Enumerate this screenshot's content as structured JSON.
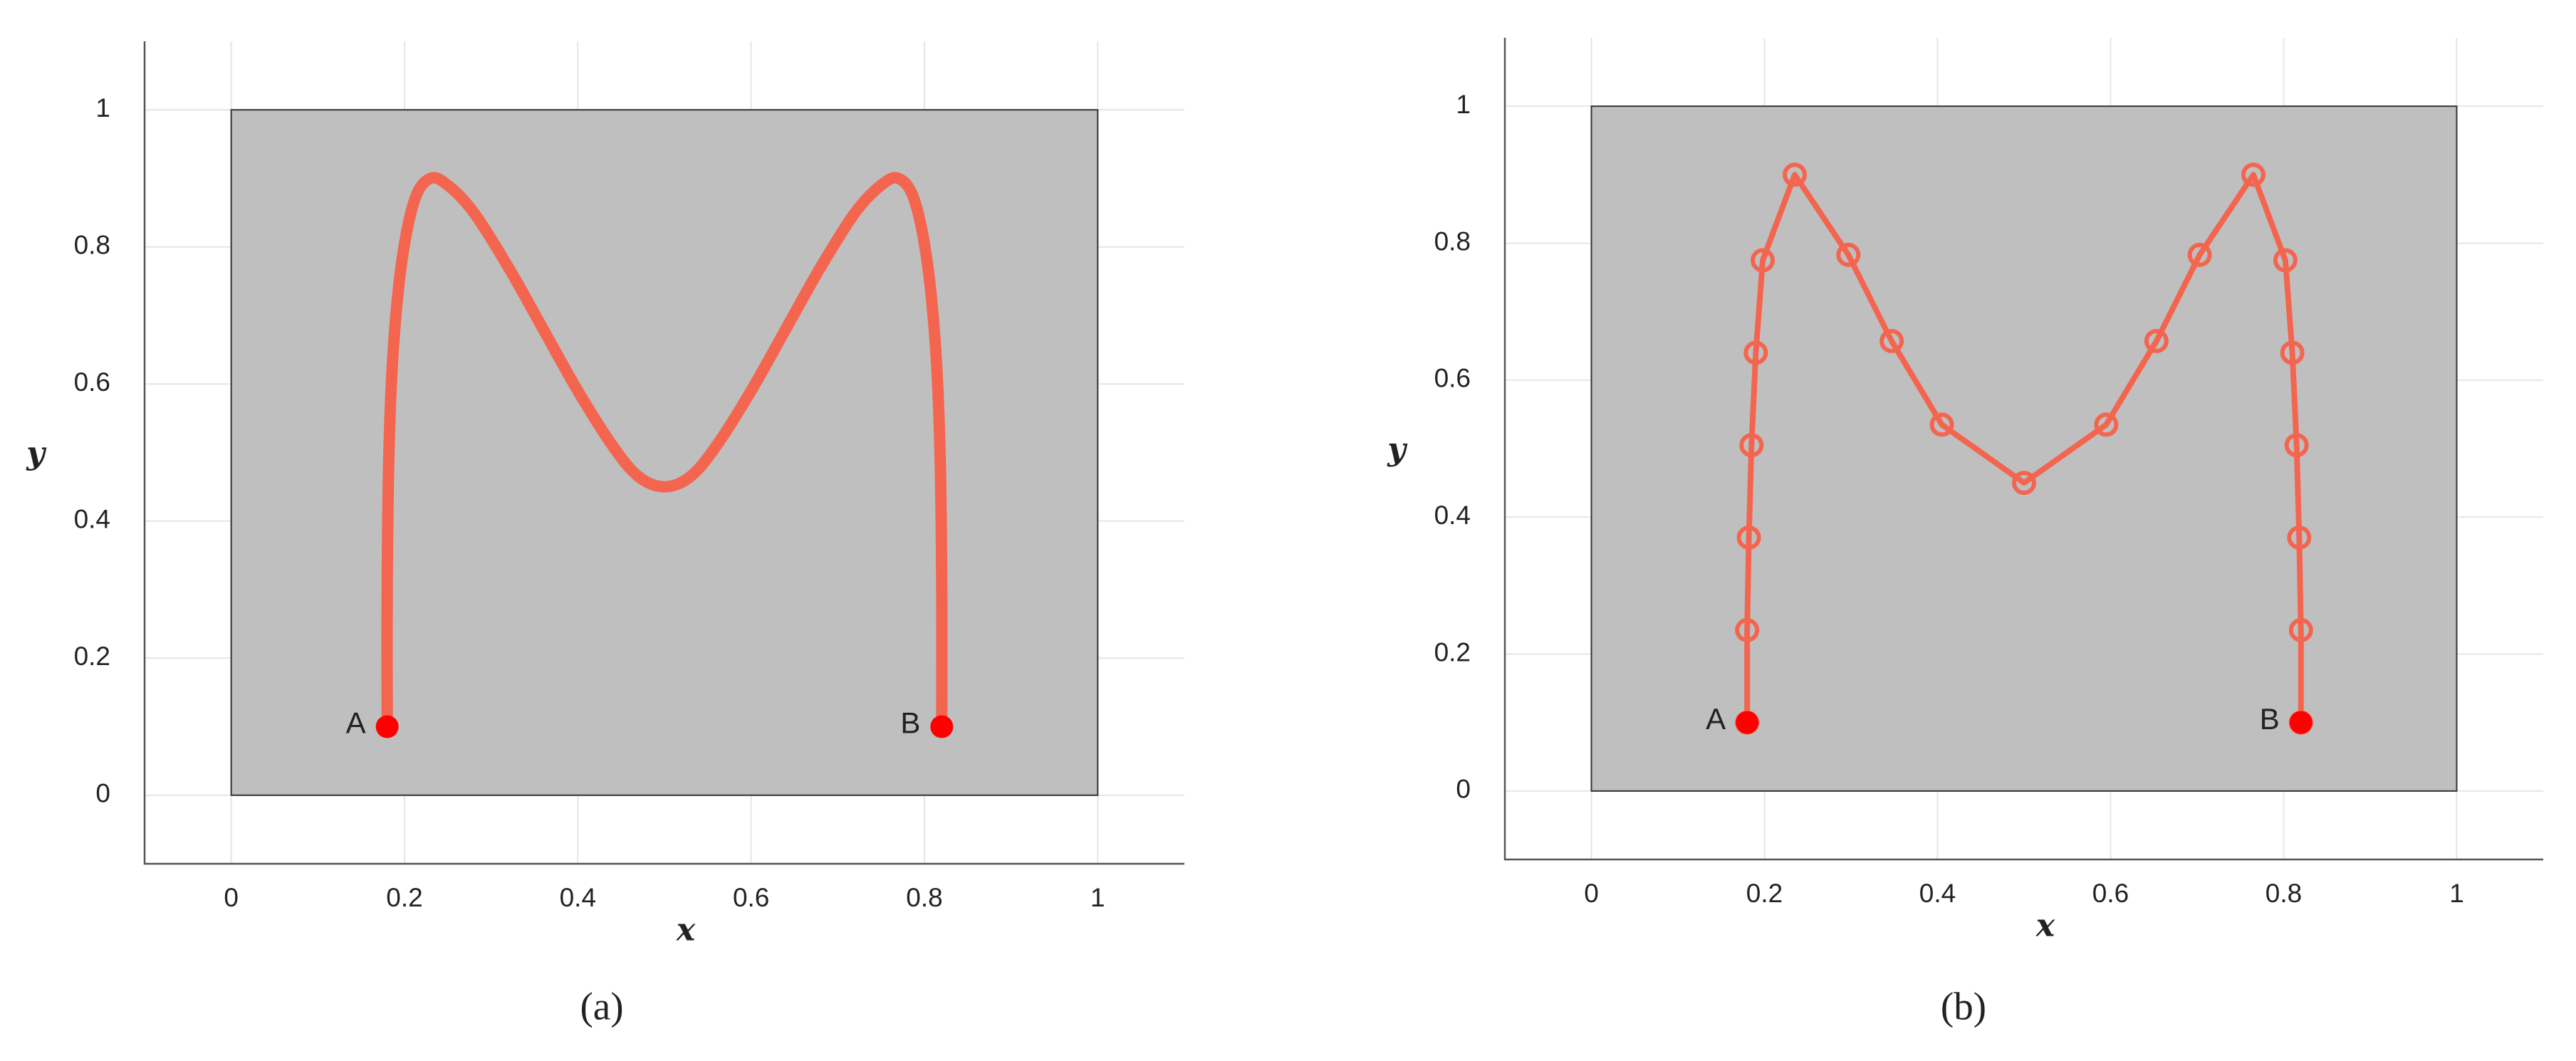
{
  "chart_data": [
    {
      "type": "line",
      "caption": "(a)",
      "xlabel": "x",
      "ylabel": "y",
      "xlim": [
        -0.1,
        1.1
      ],
      "ylim": [
        -0.1,
        1.1
      ],
      "xticks": [
        0,
        0.2,
        0.4,
        0.6,
        0.8,
        1
      ],
      "yticks": [
        0,
        0.2,
        0.4,
        0.6,
        0.8,
        1
      ],
      "grid": true,
      "region": {
        "x": [
          0,
          1
        ],
        "y": [
          0,
          1
        ],
        "color": "#bfbfbf"
      },
      "series": [
        {
          "color": "#f4654f",
          "marker": false,
          "x": [
            0.18,
            0.18,
            0.182,
            0.187,
            0.197,
            0.212,
            0.23,
            0.25,
            0.28,
            0.32,
            0.36,
            0.4,
            0.44,
            0.47,
            0.5,
            0.53,
            0.56,
            0.6,
            0.64,
            0.68,
            0.72,
            0.75,
            0.77,
            0.788,
            0.803,
            0.813,
            0.818,
            0.82,
            0.82
          ],
          "values": [
            0.1,
            0.3,
            0.5,
            0.65,
            0.78,
            0.87,
            0.9,
            0.89,
            0.85,
            0.77,
            0.68,
            0.59,
            0.51,
            0.465,
            0.45,
            0.465,
            0.51,
            0.59,
            0.68,
            0.77,
            0.85,
            0.89,
            0.9,
            0.87,
            0.78,
            0.65,
            0.5,
            0.3,
            0.1
          ]
        }
      ],
      "annotations": [
        {
          "text": "A",
          "x": 0.18,
          "y": 0.1,
          "color": "#ff0000"
        },
        {
          "text": "B",
          "x": 0.82,
          "y": 0.1,
          "color": "#ff0000"
        }
      ]
    },
    {
      "type": "line",
      "caption": "(b)",
      "xlabel": "x",
      "ylabel": "y",
      "xlim": [
        -0.1,
        1.1
      ],
      "ylim": [
        -0.1,
        1.1
      ],
      "xticks": [
        0,
        0.2,
        0.4,
        0.6,
        0.8,
        1
      ],
      "yticks": [
        0,
        0.2,
        0.4,
        0.6,
        0.8,
        1
      ],
      "grid": true,
      "region": {
        "x": [
          0,
          1
        ],
        "y": [
          0,
          1
        ],
        "color": "#bfbfbf"
      },
      "series": [
        {
          "color": "#f4654f",
          "marker": true,
          "x": [
            0.18,
            0.18,
            0.182,
            0.185,
            0.19,
            0.198,
            0.235,
            0.297,
            0.347,
            0.405,
            0.5,
            0.595,
            0.653,
            0.703,
            0.765,
            0.802,
            0.81,
            0.815,
            0.818,
            0.82,
            0.82
          ],
          "values": [
            0.1,
            0.235,
            0.37,
            0.505,
            0.64,
            0.775,
            0.9,
            0.783,
            0.657,
            0.535,
            0.45,
            0.535,
            0.657,
            0.783,
            0.9,
            0.775,
            0.64,
            0.505,
            0.37,
            0.235,
            0.1
          ]
        }
      ],
      "annotations": [
        {
          "text": "A",
          "x": 0.18,
          "y": 0.1,
          "color": "#ff0000"
        },
        {
          "text": "B",
          "x": 0.82,
          "y": 0.1,
          "color": "#ff0000"
        }
      ]
    }
  ]
}
